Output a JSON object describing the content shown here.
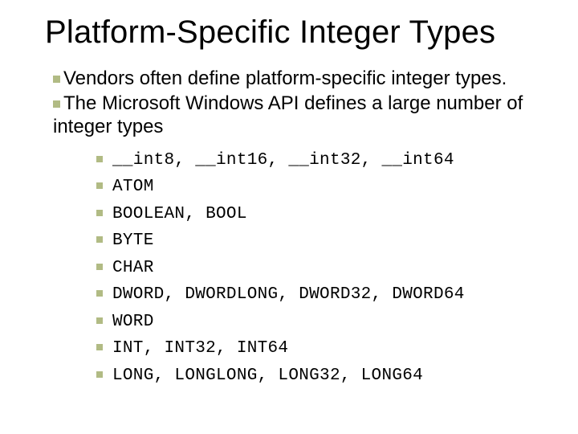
{
  "palette": {
    "background": "#ffffff",
    "text": "#000000",
    "bullet": "#b1bb84"
  },
  "typography": {
    "title_fontsize": 40,
    "body_fontsize": 24,
    "sub_fontsize": 20,
    "mono_family": "Courier New",
    "sans_family": "Verdana"
  },
  "title": "Platform-Specific Integer Types",
  "main_bullets": [
    "Vendors often define platform-specific integer types.",
    "The Microsoft Windows API defines a large number of integer types"
  ],
  "sub_bullets": [
    "__int8, __int16, __int32, __int64",
    "ATOM",
    "BOOLEAN, BOOL",
    "BYTE",
    "CHAR",
    "DWORD, DWORDLONG, DWORD32, DWORD64",
    "WORD",
    "INT, INT32, INT64",
    "LONG, LONGLONG, LONG32, LONG64"
  ]
}
